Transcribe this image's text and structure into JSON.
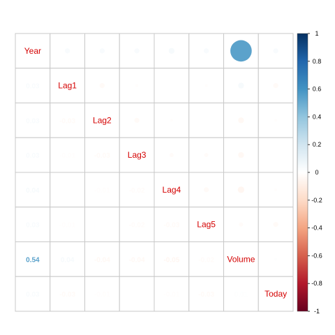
{
  "chart_data": {
    "type": "heatmap",
    "title": "",
    "method_upper": "circle",
    "method_lower": "number",
    "variables": [
      "Year",
      "Lag1",
      "Lag2",
      "Lag3",
      "Lag4",
      "Lag5",
      "Volume",
      "Today"
    ],
    "matrix": [
      [
        1.0,
        0.03,
        0.03,
        0.03,
        0.04,
        0.03,
        0.54,
        0.03
      ],
      [
        0.03,
        1.0,
        -0.03,
        -0.01,
        0.0,
        -0.01,
        0.04,
        -0.03
      ],
      [
        0.03,
        -0.03,
        1.0,
        -0.03,
        -0.01,
        0.0,
        -0.04,
        -0.01
      ],
      [
        0.03,
        -0.01,
        -0.03,
        1.0,
        -0.02,
        -0.02,
        -0.04,
        0.0
      ],
      [
        0.04,
        0.0,
        -0.01,
        -0.02,
        1.0,
        -0.03,
        -0.05,
        -0.01
      ],
      [
        0.03,
        -0.01,
        0.0,
        -0.02,
        -0.03,
        1.0,
        -0.02,
        -0.03
      ],
      [
        0.54,
        0.04,
        -0.04,
        -0.04,
        -0.05,
        -0.02,
        1.0,
        0.01
      ],
      [
        0.03,
        -0.03,
        -0.01,
        0.0,
        -0.01,
        -0.03,
        0.01,
        1.0
      ]
    ],
    "colorbar": {
      "range": [
        -1,
        1
      ],
      "ticks": [
        "1",
        "0.8",
        "0.6",
        "0.4",
        "0.2",
        "0",
        "-0.2",
        "-0.4",
        "-0.6",
        "-0.8",
        "-1"
      ],
      "colors": [
        "#053061",
        "#2166ac",
        "#4393c3",
        "#92c5de",
        "#d1e5f0",
        "#ffffff",
        "#fddbc7",
        "#f4a582",
        "#d6604d",
        "#b2182b",
        "#67001f"
      ]
    },
    "label_color": "#d40000",
    "grid": true
  }
}
